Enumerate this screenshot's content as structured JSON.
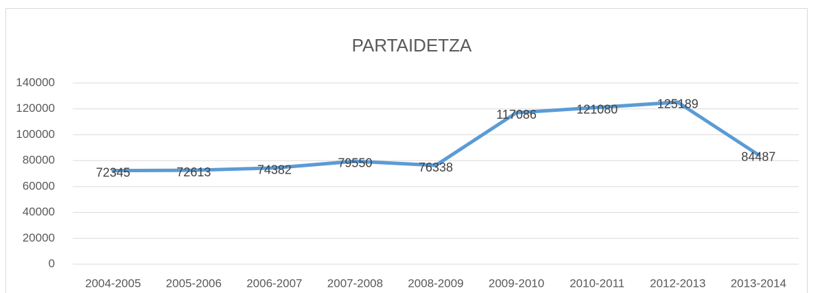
{
  "chart_data": {
    "type": "line",
    "title": "PARTAIDETZA",
    "categories": [
      "2004-2005",
      "2005-2006",
      "2006-2007",
      "2007-2008",
      "2008-2009",
      "2009-2010",
      "2010-2011",
      "2012-2013",
      "2013-2014"
    ],
    "values": [
      72345,
      72613,
      74382,
      79550,
      76338,
      117086,
      121080,
      125189,
      84487
    ],
    "color": "#5b9bd5",
    "ylim": [
      0,
      140000
    ],
    "yticks": [
      0,
      20000,
      40000,
      60000,
      80000,
      100000,
      120000,
      140000
    ],
    "grid": true
  }
}
